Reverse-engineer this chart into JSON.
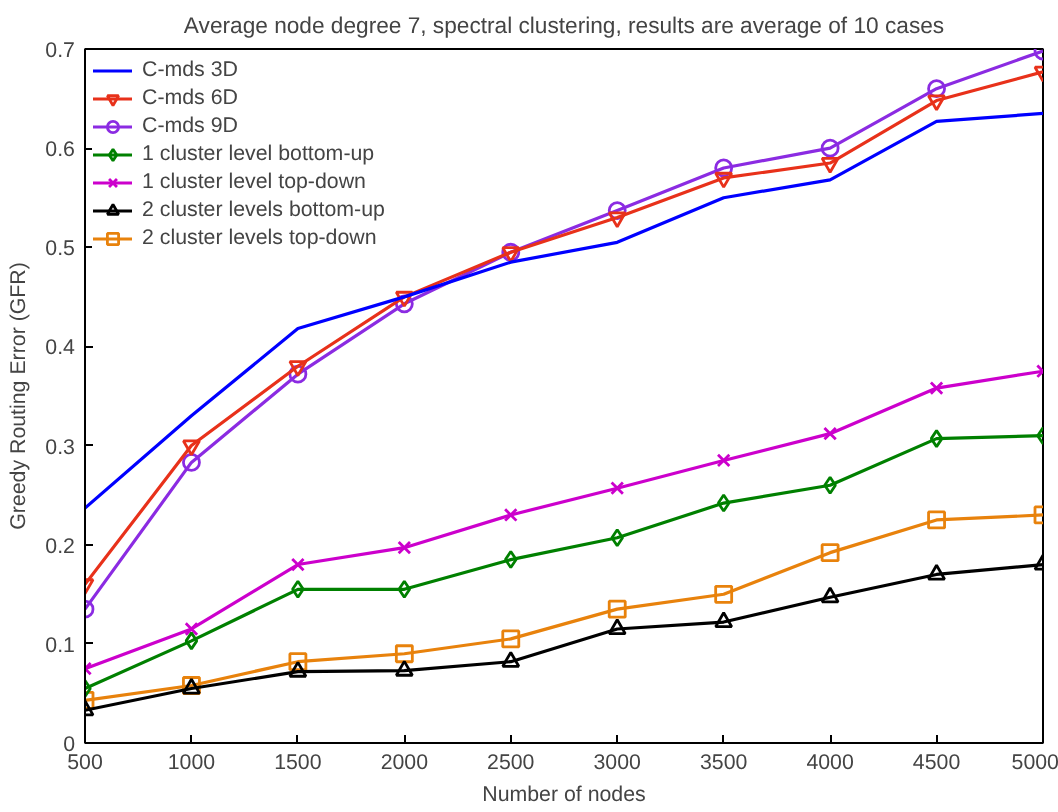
{
  "chart_data": {
    "type": "line",
    "title": "Average node degree 7, spectral clustering, results are average of 10 cases",
    "xlabel": "Number of nodes",
    "ylabel": "Greedy Routing Error (GFR)",
    "x": [
      500,
      1000,
      1500,
      2000,
      2500,
      3000,
      3500,
      4000,
      4500,
      5000
    ],
    "xlim": [
      500,
      5000
    ],
    "xticks": [
      500,
      1000,
      1500,
      2000,
      2500,
      3000,
      3500,
      4000,
      4500,
      5000
    ],
    "ylim": [
      0,
      0.7
    ],
    "yticks": [
      0,
      0.1,
      0.2,
      0.3,
      0.4,
      0.5,
      0.6,
      0.7
    ],
    "grid": false,
    "legend": "top left",
    "series": [
      {
        "name": "C-mds 3D",
        "color": "#0000ff",
        "marker": "none",
        "values": [
          0.237,
          0.33,
          0.418,
          0.45,
          0.485,
          0.505,
          0.55,
          0.568,
          0.627,
          0.635
        ]
      },
      {
        "name": "C-mds 6D",
        "color": "#e8311a",
        "marker": "triangle_down",
        "values": [
          0.16,
          0.3,
          0.38,
          0.45,
          0.495,
          0.53,
          0.57,
          0.585,
          0.648,
          0.677
        ]
      },
      {
        "name": "C-mds 9D",
        "color": "#8b2be2",
        "marker": "circle",
        "values": [
          0.135,
          0.283,
          0.372,
          0.443,
          0.495,
          0.537,
          0.58,
          0.6,
          0.66,
          0.698
        ]
      },
      {
        "name": "1 cluster level bottom-up",
        "color": "#008000",
        "marker": "diamond",
        "values": [
          0.055,
          0.103,
          0.155,
          0.155,
          0.185,
          0.207,
          0.242,
          0.26,
          0.307,
          0.31
        ]
      },
      {
        "name": "1 cluster level top-down",
        "color": "#cc00cc",
        "marker": "cross",
        "values": [
          0.075,
          0.115,
          0.18,
          0.197,
          0.23,
          0.257,
          0.285,
          0.312,
          0.358,
          0.375
        ]
      },
      {
        "name": "2 cluster levels bottom-up",
        "color": "#000000",
        "marker": "triangle",
        "values": [
          0.033,
          0.055,
          0.072,
          0.073,
          0.082,
          0.115,
          0.122,
          0.147,
          0.17,
          0.18
        ]
      },
      {
        "name": "2 cluster levels top-down",
        "color": "#e8820c",
        "marker": "square",
        "values": [
          0.043,
          0.058,
          0.082,
          0.09,
          0.105,
          0.135,
          0.15,
          0.192,
          0.225,
          0.23
        ]
      }
    ]
  }
}
